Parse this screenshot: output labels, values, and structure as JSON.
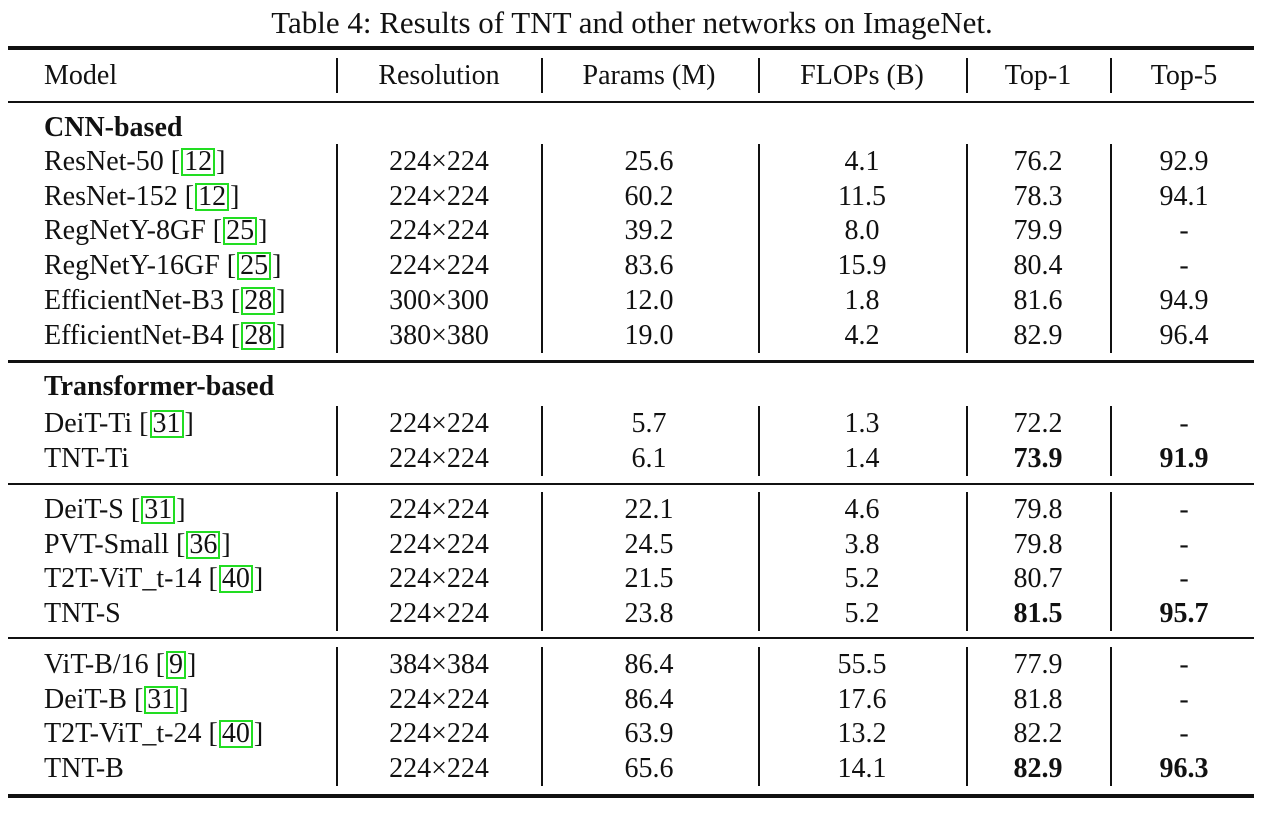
{
  "caption": "Table 4: Results of TNT and other networks on ImageNet.",
  "headers": [
    "Model",
    "Resolution",
    "Params (M)",
    "FLOPs (B)",
    "Top-1",
    "Top-5"
  ],
  "groups": [
    {
      "label": "CNN-based",
      "rows": [
        {
          "model": "ResNet-50 [",
          "cite": "12",
          "close": "]",
          "res": "224×224",
          "params": "25.6",
          "flops": "4.1",
          "top1": "76.2",
          "top5": "92.9"
        },
        {
          "model": "ResNet-152 [",
          "cite": "12",
          "close": "]",
          "res": "224×224",
          "params": "60.2",
          "flops": "11.5",
          "top1": "78.3",
          "top5": "94.1"
        },
        {
          "model": "RegNetY-8GF [",
          "cite": "25",
          "close": "]",
          "res": "224×224",
          "params": "39.2",
          "flops": "8.0",
          "top1": "79.9",
          "top5": "-"
        },
        {
          "model": "RegNetY-16GF [",
          "cite": "25",
          "close": "]",
          "res": "224×224",
          "params": "83.6",
          "flops": "15.9",
          "top1": "80.4",
          "top5": "-"
        },
        {
          "model": "EfficientNet-B3 [",
          "cite": "28",
          "close": "]",
          "res": "300×300",
          "params": "12.0",
          "flops": "1.8",
          "top1": "81.6",
          "top5": "94.9"
        },
        {
          "model": "EfficientNet-B4 [",
          "cite": "28",
          "close": "]",
          "res": "380×380",
          "params": "19.0",
          "flops": "4.2",
          "top1": "82.9",
          "top5": "96.4"
        }
      ]
    },
    {
      "label": "Transformer-based",
      "rows": [
        {
          "model": "DeiT-Ti [",
          "cite": "31",
          "close": "]",
          "res": "224×224",
          "params": "5.7",
          "flops": "1.3",
          "top1": "72.2",
          "top5": "-"
        },
        {
          "model": "TNT-Ti",
          "cite": "",
          "close": "",
          "res": "224×224",
          "params": "6.1",
          "flops": "1.4",
          "top1": "73.9",
          "top5": "91.9",
          "bold": true
        }
      ]
    },
    {
      "label": "",
      "rows": [
        {
          "model": "DeiT-S [",
          "cite": "31",
          "close": "]",
          "res": "224×224",
          "params": "22.1",
          "flops": "4.6",
          "top1": "79.8",
          "top5": "-"
        },
        {
          "model": "PVT-Small [",
          "cite": "36",
          "close": "]",
          "res": "224×224",
          "params": "24.5",
          "flops": "3.8",
          "top1": "79.8",
          "top5": "-"
        },
        {
          "model": "T2T-ViT_t-14 [",
          "cite": "40",
          "close": "]",
          "res": "224×224",
          "params": "21.5",
          "flops": "5.2",
          "top1": "80.7",
          "top5": "-"
        },
        {
          "model": "TNT-S",
          "cite": "",
          "close": "",
          "res": "224×224",
          "params": "23.8",
          "flops": "5.2",
          "top1": "81.5",
          "top5": "95.7",
          "bold": true
        }
      ]
    },
    {
      "label": "",
      "rows": [
        {
          "model": "ViT-B/16 [",
          "cite": "9",
          "close": "]",
          "res": "384×384",
          "params": "86.4",
          "flops": "55.5",
          "top1": "77.9",
          "top5": "-"
        },
        {
          "model": "DeiT-B [",
          "cite": "31",
          "close": "]",
          "res": "224×224",
          "params": "86.4",
          "flops": "17.6",
          "top1": "81.8",
          "top5": "-"
        },
        {
          "model": "T2T-ViT_t-24 [",
          "cite": "40",
          "close": "]",
          "res": "224×224",
          "params": "63.9",
          "flops": "13.2",
          "top1": "82.2",
          "top5": "-"
        },
        {
          "model": "TNT-B",
          "cite": "",
          "close": "",
          "res": "224×224",
          "params": "65.6",
          "flops": "14.1",
          "top1": "82.9",
          "top5": "96.3",
          "bold": true
        }
      ]
    }
  ]
}
